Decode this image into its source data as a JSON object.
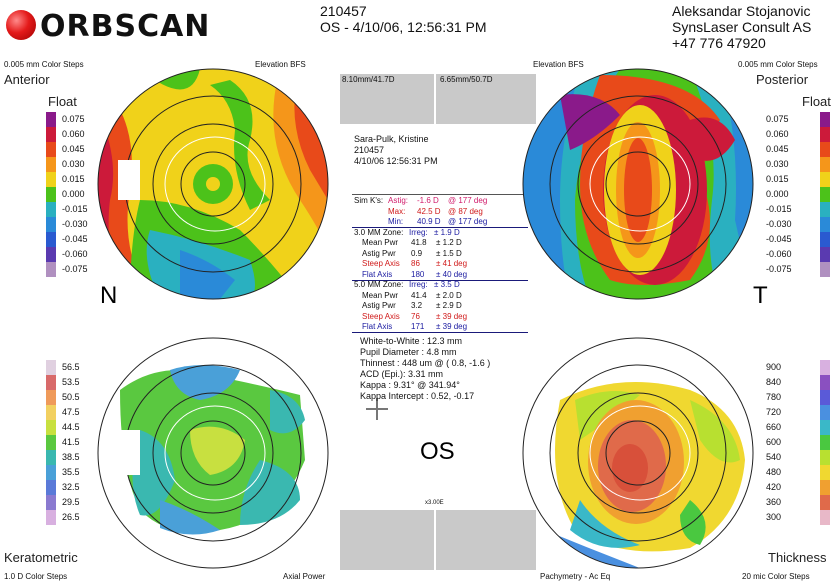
{
  "header": {
    "logo": "ORBSCAN",
    "patient_id": "210457",
    "exam_line": "OS - 4/10/06, 12:56:31 PM",
    "doctor": "Aleksandar Stojanovic",
    "clinic": "SynsLaser Consult AS",
    "phone": "+47 776 47920"
  },
  "labels": {
    "tl_steps": "0.005 mm Color Steps",
    "tl_bfs": "Elevation BFS",
    "tr_bfs": "Elevation BFS",
    "tr_steps": "0.005 mm Color Steps",
    "bl_steps": "1.0 D Color Steps",
    "bl_type": "Axial Power",
    "br_type": "Pachymetry - Ac Eq",
    "br_steps": "20 mic Color Steps",
    "anterior": "Anterior",
    "float_l": "Float",
    "posterior": "Posterior",
    "float_r": "Float",
    "keratometric": "Keratometric",
    "thickness": "Thickness",
    "n": "N",
    "t": "T",
    "os": "OS",
    "box_left": "8.10mm/41.7D",
    "box_right": "6.65mm/50.7D",
    "bottom_box": "x3.00E"
  },
  "patient": {
    "name": "Sara-Pulk, Kristine",
    "id": "210457",
    "datetime": "4/10/06 12:56:31 PM"
  },
  "simk": {
    "title": "Sim K's:",
    "astig": "Astig:",
    "astig_val": "-1.6 D",
    "astig_deg": "@ 177 deg",
    "max": "Max:",
    "max_val": "42.5 D",
    "max_deg": "@ 87 deg",
    "min": "Min:",
    "min_val": "40.9 D",
    "min_deg": "@ 177 deg"
  },
  "zone3": {
    "title": "3.0 MM Zone:",
    "irreg": "Irreg:",
    "irreg_val": "± 1.9 D",
    "mean": "Mean Pwr",
    "mean_a": "41.8",
    "mean_b": "± 1.2 D",
    "astig": "Astig Pwr",
    "astig_a": "0.9",
    "astig_b": "± 1.5 D",
    "steep": "Steep Axis",
    "steep_a": "86",
    "steep_b": "± 41 deg",
    "flat": "Flat Axis",
    "flat_a": "180",
    "flat_b": "± 40 deg"
  },
  "zone5": {
    "title": "5.0 MM Zone:",
    "irreg": "Irreg:",
    "irreg_val": "± 3.5 D",
    "mean": "Mean Pwr",
    "mean_a": "41.4",
    "mean_b": "± 2.0 D",
    "astig": "Astig Pwr",
    "astig_a": "3.2",
    "astig_b": "± 2.9 D",
    "steep": "Steep Axis",
    "steep_a": "76",
    "steep_b": "± 39 deg",
    "flat": "Flat Axis",
    "flat_a": "171",
    "flat_b": "± 39 deg"
  },
  "misc": [
    "White-to-White : 12.3 mm",
    "Pupil Diameter :  4.8 mm",
    "Thinnest : 448 um @ ( 0.8, -1.6 )",
    "ACD (Epi.): 3.31 mm",
    "Kappa : 9.31° @ 341.94°",
    "Kappa Intercept : 0.52, -0.17"
  ],
  "legend_left": {
    "items": [
      {
        "label": "0.075",
        "color": "#8a1a8a"
      },
      {
        "label": "0.060",
        "color": "#cc1a3a"
      },
      {
        "label": "0.045",
        "color": "#e84a1a"
      },
      {
        "label": "0.030",
        "color": "#f5961a"
      },
      {
        "label": "0.015",
        "color": "#f0d21a"
      },
      {
        "label": "0.000",
        "color": "#4cc21a"
      },
      {
        "label": "-0.015",
        "color": "#2ab0c0"
      },
      {
        "label": "-0.030",
        "color": "#2a8ad8"
      },
      {
        "label": "-0.045",
        "color": "#2a5ad0"
      },
      {
        "label": "-0.060",
        "color": "#5a3ab0"
      },
      {
        "label": "-0.075",
        "color": "#b090c0"
      }
    ]
  },
  "legend_right": {
    "items": [
      {
        "label": "0.075",
        "color": "#8a1a8a"
      },
      {
        "label": "0.060",
        "color": "#cc1a3a"
      },
      {
        "label": "0.045",
        "color": "#e84a1a"
      },
      {
        "label": "0.030",
        "color": "#f5961a"
      },
      {
        "label": "0.015",
        "color": "#f0d21a"
      },
      {
        "label": "0.000",
        "color": "#4cc21a"
      },
      {
        "label": "-0.015",
        "color": "#2ab0c0"
      },
      {
        "label": "-0.030",
        "color": "#2a8ad8"
      },
      {
        "label": "-0.045",
        "color": "#2a5ad0"
      },
      {
        "label": "-0.060",
        "color": "#5a3ab0"
      },
      {
        "label": "-0.075",
        "color": "#b090c0"
      }
    ]
  },
  "legend_left2": {
    "items": [
      {
        "label": "56.5",
        "color": "#e0d0e0"
      },
      {
        "label": "53.5",
        "color": "#d86a6a"
      },
      {
        "label": "50.5",
        "color": "#ef9a5a"
      },
      {
        "label": "47.5",
        "color": "#f2d060"
      },
      {
        "label": "44.5",
        "color": "#c8e040"
      },
      {
        "label": "41.5",
        "color": "#5ac840"
      },
      {
        "label": "38.5",
        "color": "#3ab8b0"
      },
      {
        "label": "35.5",
        "color": "#4aa0d8"
      },
      {
        "label": "32.5",
        "color": "#5a7ad8"
      },
      {
        "label": "29.5",
        "color": "#8a7ad0"
      },
      {
        "label": "26.5",
        "color": "#d8b0e0"
      }
    ]
  },
  "legend_right2": {
    "items": [
      {
        "label": "900",
        "color": "#d8b0e0"
      },
      {
        "label": "840",
        "color": "#8a50c0"
      },
      {
        "label": "780",
        "color": "#5a5ad8"
      },
      {
        "label": "720",
        "color": "#4a90e0"
      },
      {
        "label": "660",
        "color": "#3ab8c8"
      },
      {
        "label": "600",
        "color": "#4ac840"
      },
      {
        "label": "540",
        "color": "#b8e030"
      },
      {
        "label": "480",
        "color": "#f0d830"
      },
      {
        "label": "420",
        "color": "#f0a030"
      },
      {
        "label": "360",
        "color": "#e06a4a"
      },
      {
        "label": "300",
        "color": "#e8b8c8"
      }
    ]
  }
}
